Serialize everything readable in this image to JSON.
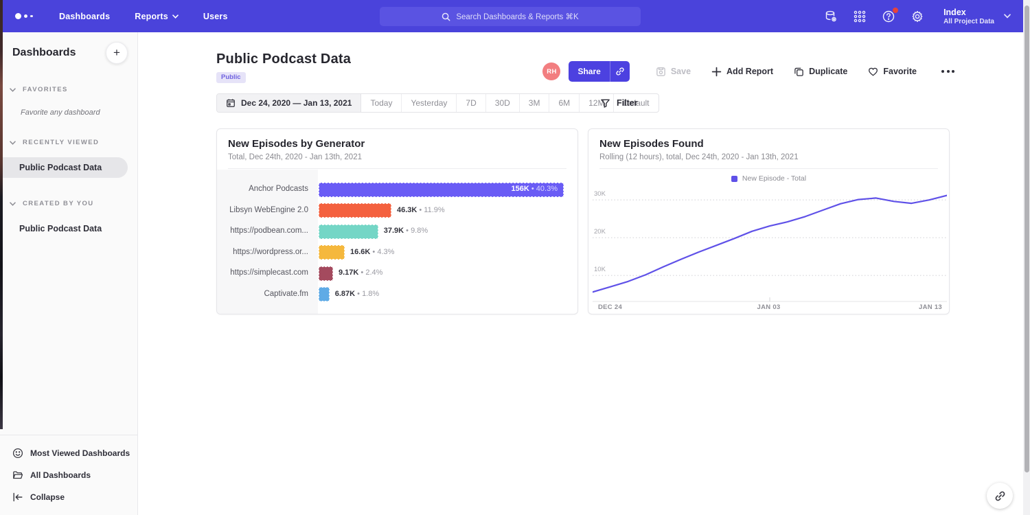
{
  "nav": {
    "items": {
      "dashboards": "Dashboards",
      "reports": "Reports",
      "users": "Users"
    },
    "search_placeholder": "Search Dashboards & Reports ⌘K",
    "workspace": {
      "name": "Index",
      "subtitle": "All Project Data"
    },
    "icons": [
      "data-source-icon",
      "apps-grid-icon",
      "help-icon",
      "gear-icon",
      "chevron-down-icon"
    ],
    "accent_color": "#4A43DB"
  },
  "sidebar": {
    "title": "Dashboards",
    "add_button": "+",
    "sections": {
      "favorites": {
        "label": "FAVORITES",
        "empty_hint": "Favorite any dashboard"
      },
      "recently_viewed": {
        "label": "RECENTLY VIEWED",
        "item": "Public Podcast Data"
      },
      "created_by_you": {
        "label": "CREATED BY YOU",
        "item": "Public Podcast Data"
      }
    },
    "footer": {
      "most_viewed": "Most Viewed Dashboards",
      "all_dashboards": "All Dashboards",
      "collapse": "Collapse"
    }
  },
  "header": {
    "title": "Public Podcast Data",
    "badge": "Public",
    "badge_colors": {
      "bg": "#E6E3F8",
      "text": "#6F62E0"
    },
    "avatar_initials": "RH",
    "avatar_color": "#F27E80",
    "actions": {
      "share": "Share",
      "save": "Save",
      "add_report": "Add Report",
      "duplicate": "Duplicate",
      "favorite": "Favorite"
    }
  },
  "toolbar": {
    "date_range": "Dec 24, 2020 — Jan 13, 2021",
    "presets": [
      "Today",
      "Yesterday",
      "7D",
      "30D",
      "3M",
      "6M",
      "12M",
      "Default"
    ],
    "filter_label": "Filter"
  },
  "chart_data": [
    {
      "type": "bar",
      "orientation": "horizontal",
      "title": "New Episodes by Generator",
      "subtitle": "Total, Dec 24th, 2020 - Jan 13th, 2021",
      "categories": [
        "Anchor Podcasts",
        "Libsyn WebEngine 2.0",
        "https://podbean.com...",
        "https://wordpress.or...",
        "https://simplecast.com",
        "Captivate.fm"
      ],
      "values": [
        156000,
        46300,
        37900,
        16600,
        9170,
        6870
      ],
      "value_labels": [
        "156K",
        "46.3K",
        "37.9K",
        "16.6K",
        "9.17K",
        "6.87K"
      ],
      "pct_labels": [
        "40.3%",
        "11.9%",
        "9.8%",
        "4.3%",
        "2.4%",
        "1.8%"
      ],
      "colors": [
        "#6A5CF5",
        "#F4613F",
        "#74D6C6",
        "#F5B83D",
        "#A44A5E",
        "#5FABE6"
      ],
      "xmax": 156000
    },
    {
      "type": "line",
      "title": "New Episodes Found",
      "subtitle": "Rolling (12 hours), total, Dec 24th, 2020 - Jan 13th, 2021",
      "legend": "New Episode - Total",
      "line_color": "#5F51E8",
      "x_ticks": [
        "DEC 24",
        "JAN 03",
        "JAN 13"
      ],
      "y_ticks": [
        {
          "value": 10000,
          "label": "10K"
        },
        {
          "value": 20000,
          "label": "20K"
        },
        {
          "value": 30000,
          "label": "30K"
        }
      ],
      "ylim": [
        3300,
        33600
      ],
      "grid": "dotted-horizontal",
      "x": [
        "Dec 24",
        "Dec 25",
        "Dec 26",
        "Dec 27",
        "Dec 28",
        "Dec 29",
        "Dec 30",
        "Dec 31",
        "Jan 01",
        "Jan 02",
        "Jan 03",
        "Jan 04",
        "Jan 05",
        "Jan 06",
        "Jan 07",
        "Jan 08",
        "Jan 09",
        "Jan 10",
        "Jan 11",
        "Jan 12",
        "Jan 13"
      ],
      "values": [
        5600,
        7000,
        8400,
        10200,
        12300,
        14300,
        16200,
        18000,
        19800,
        21700,
        23100,
        24200,
        25600,
        27300,
        29000,
        30100,
        30500,
        29600,
        29100,
        30000,
        31200
      ]
    }
  ],
  "fab": {
    "icon": "link-icon"
  }
}
